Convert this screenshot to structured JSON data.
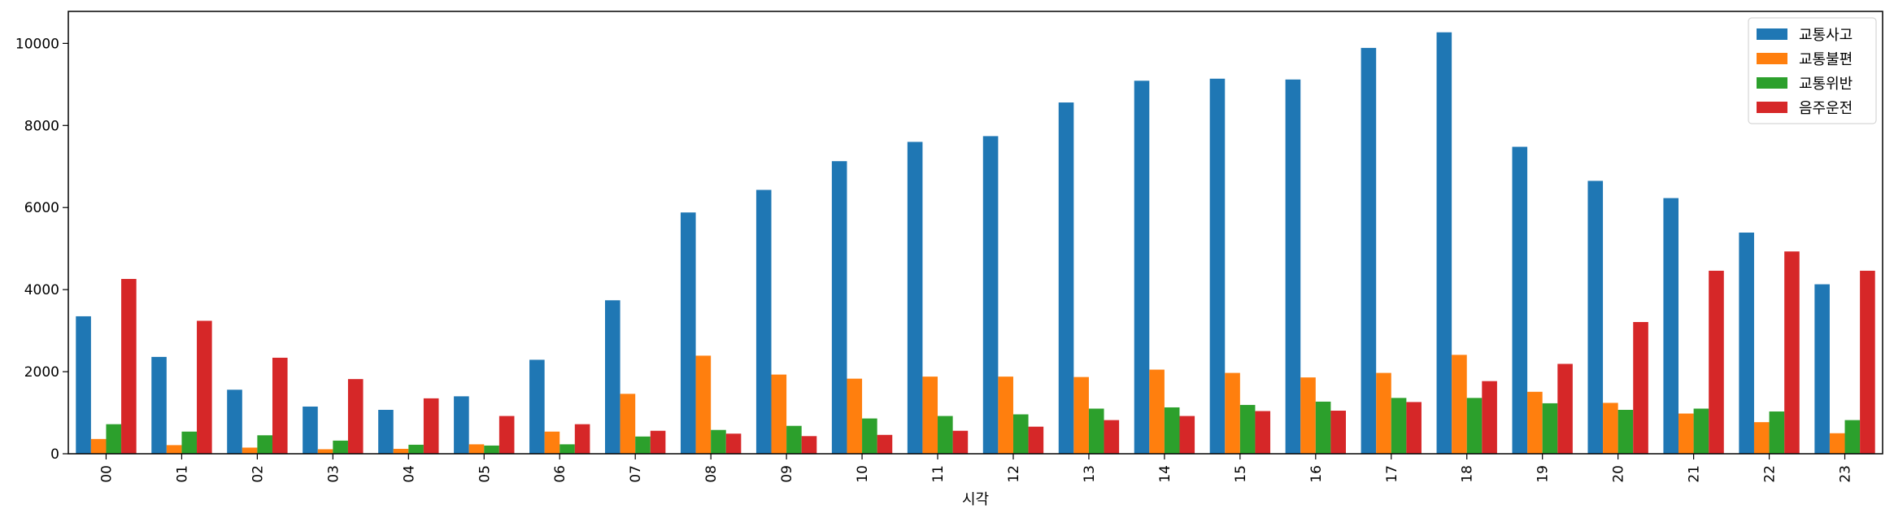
{
  "chart_data": {
    "type": "bar",
    "title": "",
    "xlabel": "시각",
    "ylabel": "",
    "categories": [
      "00",
      "01",
      "02",
      "03",
      "04",
      "05",
      "06",
      "07",
      "08",
      "09",
      "10",
      "11",
      "12",
      "13",
      "14",
      "15",
      "16",
      "17",
      "18",
      "19",
      "20",
      "21",
      "22",
      "23"
    ],
    "ylim": [
      0,
      10780
    ],
    "yticks": [
      0,
      2000,
      4000,
      6000,
      8000,
      10000
    ],
    "grid": false,
    "legend_position": "top-right",
    "series": [
      {
        "name": "교통사고",
        "color": "#1f77b4",
        "values": [
          3350,
          2360,
          1560,
          1150,
          1070,
          1400,
          2290,
          3740,
          5880,
          6430,
          7130,
          7600,
          7740,
          8560,
          9090,
          9140,
          9120,
          9890,
          10270,
          7480,
          6650,
          6230,
          5390,
          4130
        ]
      },
      {
        "name": "교통불편",
        "color": "#ff7f0e",
        "values": [
          360,
          210,
          150,
          110,
          120,
          230,
          540,
          1460,
          2390,
          1930,
          1830,
          1880,
          1880,
          1870,
          2050,
          1970,
          1860,
          1970,
          2410,
          1510,
          1240,
          980,
          770,
          500
        ]
      },
      {
        "name": "교통위반",
        "color": "#2ca02c",
        "values": [
          720,
          540,
          450,
          320,
          220,
          200,
          230,
          420,
          580,
          680,
          860,
          920,
          960,
          1100,
          1130,
          1190,
          1270,
          1360,
          1360,
          1230,
          1070,
          1100,
          1030,
          820
        ]
      },
      {
        "name": "음주운전",
        "color": "#d62728",
        "values": [
          4260,
          3240,
          2340,
          1820,
          1350,
          920,
          720,
          560,
          490,
          430,
          460,
          560,
          660,
          820,
          920,
          1040,
          1050,
          1260,
          1770,
          2190,
          3210,
          4460,
          4930,
          4460
        ]
      }
    ]
  }
}
